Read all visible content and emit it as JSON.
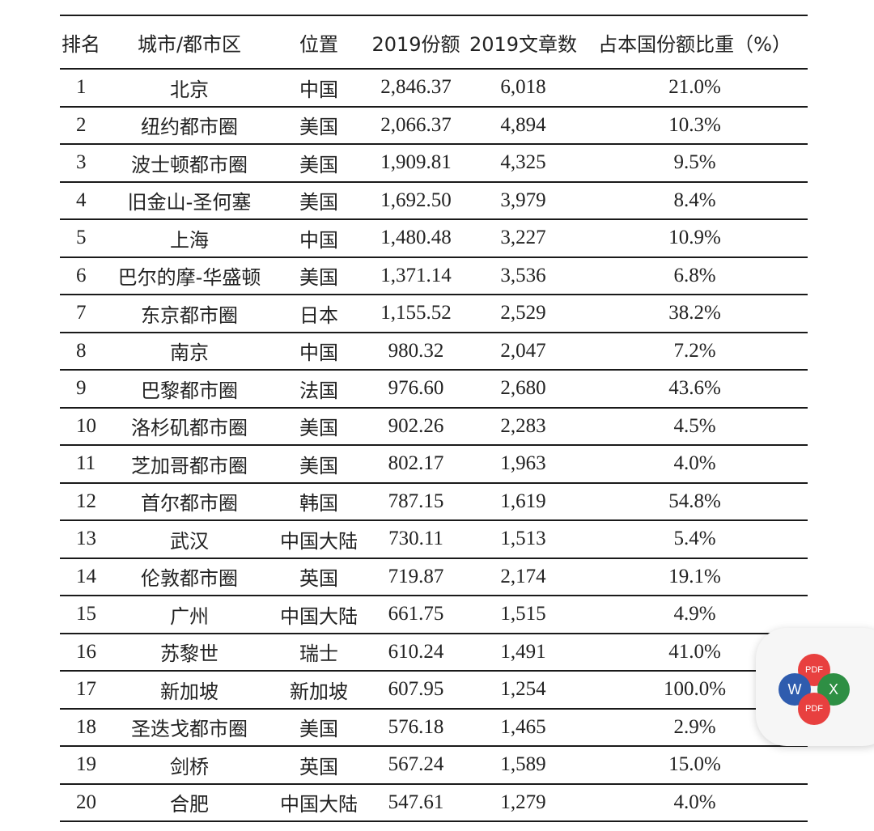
{
  "table": {
    "headers": [
      "排名",
      "城市/都市区",
      "位置",
      "2019份额",
      "2019文章数",
      "占本国份额比重（%）"
    ],
    "rows": [
      [
        "1",
        "北京",
        "中国",
        "2,846.37",
        "6,018",
        "21.0%"
      ],
      [
        "2",
        "纽约都市圈",
        "美国",
        "2,066.37",
        "4,894",
        "10.3%"
      ],
      [
        "3",
        "波士顿都市圈",
        "美国",
        "1,909.81",
        "4,325",
        "9.5%"
      ],
      [
        "4",
        "旧金山-圣何塞",
        "美国",
        "1,692.50",
        "3,979",
        "8.4%"
      ],
      [
        "5",
        "上海",
        "中国",
        "1,480.48",
        "3,227",
        "10.9%"
      ],
      [
        "6",
        "巴尔的摩-华盛顿",
        "美国",
        "1,371.14",
        "3,536",
        "6.8%"
      ],
      [
        "7",
        "东京都市圈",
        "日本",
        "1,155.52",
        "2,529",
        "38.2%"
      ],
      [
        "8",
        "南京",
        "中国",
        "980.32",
        "2,047",
        "7.2%"
      ],
      [
        "9",
        "巴黎都市圈",
        "法国",
        "976.60",
        "2,680",
        "43.6%"
      ],
      [
        "10",
        "洛杉矶都市圈",
        "美国",
        "902.26",
        "2,283",
        "4.5%"
      ],
      [
        "11",
        "芝加哥都市圈",
        "美国",
        "802.17",
        "1,963",
        "4.0%"
      ],
      [
        "12",
        "首尔都市圈",
        "韩国",
        "787.15",
        "1,619",
        "54.8%"
      ],
      [
        "13",
        "武汉",
        "中国大陆",
        "730.11",
        "1,513",
        "5.4%"
      ],
      [
        "14",
        "伦敦都市圈",
        "英国",
        "719.87",
        "2,174",
        "19.1%"
      ],
      [
        "15",
        "广州",
        "中国大陆",
        "661.75",
        "1,515",
        "4.9%"
      ],
      [
        "16",
        "苏黎世",
        "瑞士",
        "610.24",
        "1,491",
        "41.0%"
      ],
      [
        "17",
        "新加坡",
        "新加坡",
        "607.95",
        "1,254",
        "100.0%"
      ],
      [
        "18",
        "圣迭戈都市圈",
        "美国",
        "576.18",
        "1,465",
        "2.9%"
      ],
      [
        "19",
        "剑桥",
        "英国",
        "567.24",
        "1,589",
        "15.0%"
      ],
      [
        "20",
        "合肥",
        "中国大陆",
        "547.61",
        "1,279",
        "4.0%"
      ]
    ]
  },
  "widget": {
    "pdf_label": "PDF",
    "word_label": "W",
    "excel_label": "X",
    "colors": {
      "pdf": "#e8403f",
      "word": "#2f5cae",
      "excel": "#2e8f44"
    }
  }
}
